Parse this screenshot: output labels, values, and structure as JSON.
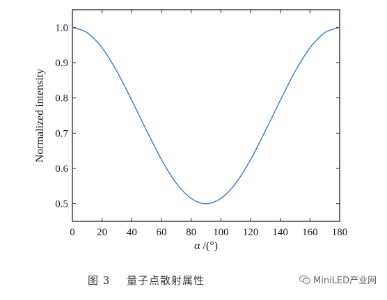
{
  "chart_data": {
    "type": "line",
    "xlabel": "α /(°)",
    "ylabel": "Normalized intensity",
    "xlim": [
      0,
      180
    ],
    "ylim": [
      0.45,
      1.05
    ],
    "xticks": [
      "0",
      "20",
      "40",
      "60",
      "80",
      "100",
      "120",
      "140",
      "160",
      "180"
    ],
    "yticks": [
      "0.5",
      "0.6",
      "0.7",
      "0.8",
      "0.9",
      "1.0"
    ],
    "grid": false,
    "series": [
      {
        "color": "#3a78c2",
        "x": [
          0,
          10,
          20,
          30,
          40,
          50,
          60,
          70,
          80,
          90,
          100,
          110,
          120,
          130,
          140,
          150,
          160,
          170,
          180
        ],
        "y": [
          1.0,
          0.985,
          0.942,
          0.875,
          0.793,
          0.707,
          0.625,
          0.558,
          0.515,
          0.5,
          0.515,
          0.558,
          0.625,
          0.707,
          0.793,
          0.875,
          0.942,
          0.985,
          1.0
        ]
      }
    ]
  },
  "caption": {
    "figure_label": "图 3",
    "title": "量子点散射属性"
  },
  "watermark": {
    "text": "MiniLED产业网",
    "icon": "wechat-icon"
  }
}
